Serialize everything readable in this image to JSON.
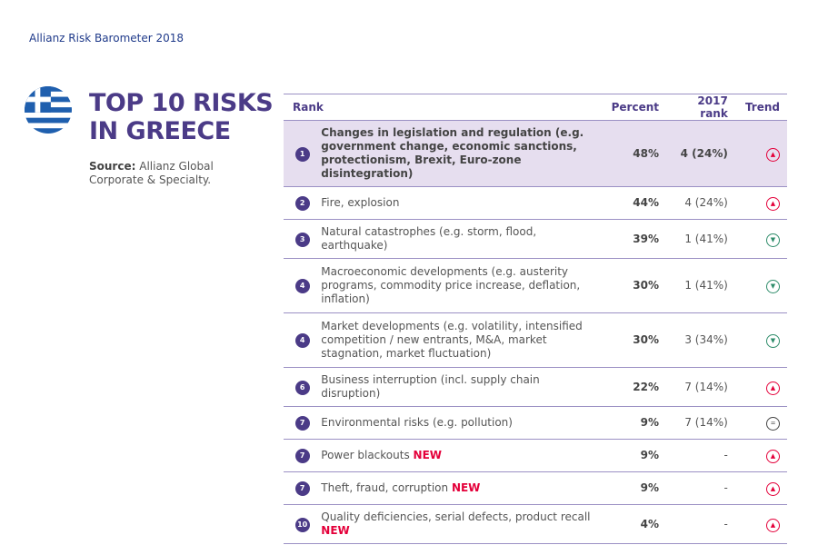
{
  "header": "Allianz Risk Barometer 2018",
  "title_line1": "TOP 10 RISKS",
  "title_line2": "IN GREECE",
  "source_label": "Source:",
  "source_text": "Allianz Global Corporate & Specialty.",
  "colors": {
    "accent": "#4b3b87",
    "highlight": "#e6deef",
    "new": "#e4003a",
    "up": "#e4003a",
    "down": "#2e8c6a"
  },
  "table": {
    "headers": [
      "Rank",
      "Percent",
      "2017 rank",
      "Trend"
    ],
    "rows": [
      {
        "rank": "1",
        "risk": "Changes in legislation and regulation (e.g. government change, economic sanctions, protectionism, Brexit, Euro-zone disintegration)",
        "new": "",
        "percent": "48%",
        "rank2017": "4 (24%)",
        "trend": "up"
      },
      {
        "rank": "2",
        "risk": "Fire, explosion",
        "new": "",
        "percent": "44%",
        "rank2017": "4 (24%)",
        "trend": "up"
      },
      {
        "rank": "3",
        "risk": "Natural catastrophes (e.g. storm, flood, earthquake)",
        "new": "",
        "percent": "39%",
        "rank2017": "1 (41%)",
        "trend": "down"
      },
      {
        "rank": "4",
        "risk": "Macroeconomic developments (e.g. austerity programs, commodity price increase, deflation, inflation)",
        "new": "",
        "percent": "30%",
        "rank2017": "1 (41%)",
        "trend": "down"
      },
      {
        "rank": "4",
        "risk": "Market developments (e.g. volatility, intensified competition / new entrants, M&A, market stagnation, market fluctuation)",
        "new": "",
        "percent": "30%",
        "rank2017": "3 (34%)",
        "trend": "down"
      },
      {
        "rank": "6",
        "risk": "Business interruption (incl. supply chain disruption)",
        "new": "",
        "percent": "22%",
        "rank2017": "7 (14%)",
        "trend": "up"
      },
      {
        "rank": "7",
        "risk": "Environmental risks (e.g. pollution)",
        "new": "",
        "percent": "9%",
        "rank2017": "7 (14%)",
        "trend": "same"
      },
      {
        "rank": "7",
        "risk": "Power blackouts ",
        "new": "NEW",
        "percent": "9%",
        "rank2017": "-",
        "trend": "up"
      },
      {
        "rank": "7",
        "risk": "Theft, fraud, corruption ",
        "new": "NEW",
        "percent": "9%",
        "rank2017": "-",
        "trend": "up"
      },
      {
        "rank": "10",
        "risk": "Quality deficiencies, serial defects, product recall ",
        "new": "NEW",
        "percent": "4%",
        "rank2017": "-",
        "trend": "up"
      }
    ]
  }
}
